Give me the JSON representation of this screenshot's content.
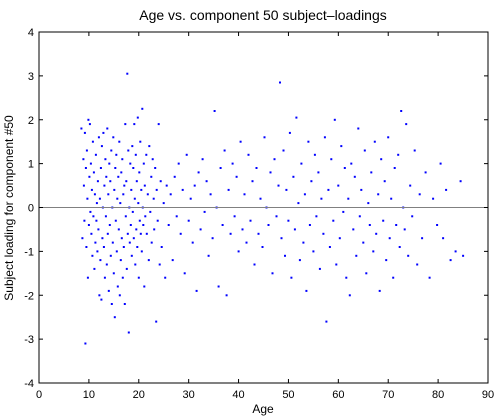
{
  "chart_data": {
    "type": "scatter",
    "title": "Age vs. component 50 subject–loadings",
    "xlabel": "Age",
    "ylabel": "Subject loading for component #50",
    "xlim": [
      0,
      90
    ],
    "ylim": [
      -4,
      4
    ],
    "xticks": [
      0,
      10,
      20,
      30,
      40,
      50,
      60,
      70,
      80,
      90
    ],
    "yticks": [
      -4,
      -3,
      -2,
      -1,
      0,
      1,
      2,
      3,
      4
    ],
    "grid": false,
    "legend": "none",
    "reference_line": 0,
    "marker_color": "#0000ff",
    "reference_line_color": "#808080",
    "points": [
      [
        8.5,
        1.8
      ],
      [
        8.7,
        -0.7
      ],
      [
        8.9,
        1.1
      ],
      [
        9.0,
        0.5
      ],
      [
        9.1,
        -0.3
      ],
      [
        9.2,
        1.7
      ],
      [
        9.3,
        -3.1
      ],
      [
        9.4,
        0.9
      ],
      [
        9.5,
        -0.9
      ],
      [
        9.6,
        1.3
      ],
      [
        9.7,
        0.2
      ],
      [
        9.8,
        -1.6
      ],
      [
        9.9,
        2.0
      ],
      [
        10.0,
        -0.4
      ],
      [
        10.1,
        0.7
      ],
      [
        10.2,
        1.9
      ],
      [
        10.3,
        -0.1
      ],
      [
        10.4,
        1.0
      ],
      [
        10.5,
        -0.6
      ],
      [
        10.6,
        0.4
      ],
      [
        10.7,
        -1.1
      ],
      [
        10.8,
        1.5
      ],
      [
        10.9,
        -0.2
      ],
      [
        11.0,
        0.8
      ],
      [
        11.1,
        -1.4
      ],
      [
        11.2,
        0.3
      ],
      [
        11.3,
        -0.8
      ],
      [
        11.4,
        1.2
      ],
      [
        11.5,
        -0.3
      ],
      [
        11.6,
        0.1
      ],
      [
        11.7,
        -1.0
      ],
      [
        11.8,
        0.6
      ],
      [
        11.9,
        -0.5
      ],
      [
        12.0,
        1.6
      ],
      [
        12.1,
        -2.0
      ],
      [
        12.2,
        0.2
      ],
      [
        12.3,
        -1.2
      ],
      [
        12.4,
        0.9
      ],
      [
        12.5,
        -2.1
      ],
      [
        12.6,
        1.4
      ],
      [
        12.7,
        -0.7
      ],
      [
        12.8,
        0.0
      ],
      [
        12.9,
        1.7
      ],
      [
        13.0,
        -0.9
      ],
      [
        13.1,
        0.5
      ],
      [
        13.2,
        -1.6
      ],
      [
        13.3,
        1.1
      ],
      [
        13.4,
        -0.2
      ],
      [
        13.5,
        0.7
      ],
      [
        13.6,
        -1.3
      ],
      [
        13.7,
        1.8
      ],
      [
        13.8,
        -0.6
      ],
      [
        13.9,
        0.3
      ],
      [
        14.0,
        -1.9
      ],
      [
        14.1,
        1.0
      ],
      [
        14.2,
        -0.4
      ],
      [
        14.3,
        0.6
      ],
      [
        14.4,
        -1.1
      ],
      [
        14.5,
        1.3
      ],
      [
        14.6,
        -2.2
      ],
      [
        14.7,
        0.0
      ],
      [
        14.8,
        -0.8
      ],
      [
        14.9,
        1.6
      ],
      [
        15.0,
        -1.5
      ],
      [
        15.1,
        0.4
      ],
      [
        15.2,
        -2.5
      ],
      [
        15.3,
        0.9
      ],
      [
        15.4,
        -0.3
      ],
      [
        15.5,
        1.2
      ],
      [
        15.6,
        -1.0
      ],
      [
        15.7,
        0.2
      ],
      [
        15.8,
        -1.8
      ],
      [
        15.9,
        0.7
      ],
      [
        16.0,
        -0.5
      ],
      [
        16.1,
        1.5
      ],
      [
        16.2,
        -2.0
      ],
      [
        16.3,
        0.1
      ],
      [
        16.4,
        -1.2
      ],
      [
        16.5,
        0.8
      ],
      [
        16.6,
        -0.7
      ],
      [
        16.7,
        1.1
      ],
      [
        16.8,
        -1.6
      ],
      [
        16.9,
        0.3
      ],
      [
        17.0,
        -0.9
      ],
      [
        17.1,
        0.5
      ],
      [
        17.2,
        -2.2
      ],
      [
        17.3,
        1.9
      ],
      [
        17.4,
        -0.2
      ],
      [
        17.5,
        0.6
      ],
      [
        17.6,
        -1.4
      ],
      [
        17.7,
        3.05
      ],
      [
        17.8,
        -0.6
      ],
      [
        17.9,
        1.3
      ],
      [
        18.0,
        -2.85
      ],
      [
        18.1,
        0.0
      ],
      [
        18.2,
        -0.8
      ],
      [
        18.3,
        1.0
      ],
      [
        18.4,
        -0.4
      ],
      [
        18.5,
        0.4
      ],
      [
        18.6,
        -1.1
      ],
      [
        18.7,
        1.4
      ],
      [
        18.8,
        -0.1
      ],
      [
        18.9,
        0.9
      ],
      [
        19.0,
        -0.7
      ],
      [
        19.1,
        1.9
      ],
      [
        19.2,
        0.2
      ],
      [
        19.3,
        -1.3
      ],
      [
        19.4,
        1.2
      ],
      [
        19.5,
        -0.5
      ],
      [
        19.6,
        0.6
      ],
      [
        19.7,
        -0.9
      ],
      [
        19.8,
        2.05
      ],
      [
        19.9,
        0.1
      ],
      [
        20.0,
        -1.6
      ],
      [
        20.1,
        0.8
      ],
      [
        20.2,
        -0.3
      ],
      [
        20.3,
        1.5
      ],
      [
        20.4,
        -0.6
      ],
      [
        20.5,
        0.4
      ],
      [
        20.6,
        -1.0
      ],
      [
        20.7,
        2.25
      ],
      [
        20.8,
        0.0
      ],
      [
        20.9,
        -0.4
      ],
      [
        21.0,
        1.0
      ],
      [
        21.1,
        -1.8
      ],
      [
        21.2,
        0.5
      ],
      [
        21.3,
        -0.2
      ],
      [
        21.5,
        1.2
      ],
      [
        21.6,
        -0.6
      ],
      [
        21.8,
        0.3
      ],
      [
        22.0,
        -1.2
      ],
      [
        22.1,
        1.4
      ],
      [
        22.3,
        -0.1
      ],
      [
        22.5,
        0.7
      ],
      [
        22.6,
        -0.8
      ],
      [
        22.8,
        1.1
      ],
      [
        23.0,
        0.2
      ],
      [
        23.1,
        -0.5
      ],
      [
        23.3,
        0.9
      ],
      [
        23.5,
        -2.6
      ],
      [
        23.6,
        0.4
      ],
      [
        23.8,
        -0.3
      ],
      [
        24.0,
        1.9
      ],
      [
        24.2,
        -1.3
      ],
      [
        24.4,
        0.6
      ],
      [
        24.6,
        -0.9
      ],
      [
        25.0,
        0.1
      ],
      [
        25.3,
        -1.6
      ],
      [
        25.6,
        0.5
      ],
      [
        26.0,
        -0.4
      ],
      [
        26.4,
        0.3
      ],
      [
        26.8,
        -1.2
      ],
      [
        27.2,
        0.7
      ],
      [
        27.6,
        -0.2
      ],
      [
        28.0,
        1.0
      ],
      [
        28.4,
        -0.6
      ],
      [
        28.8,
        0.4
      ],
      [
        29.2,
        -1.5
      ],
      [
        29.6,
        1.2
      ],
      [
        30.0,
        -0.3
      ],
      [
        30.4,
        0.2
      ],
      [
        30.8,
        -0.8
      ],
      [
        31.2,
        0.5
      ],
      [
        31.6,
        -1.9
      ],
      [
        32.0,
        0.8
      ],
      [
        32.4,
        -0.5
      ],
      [
        32.8,
        1.1
      ],
      [
        33.2,
        -0.1
      ],
      [
        33.6,
        0.6
      ],
      [
        34.0,
        -1.1
      ],
      [
        34.4,
        0.3
      ],
      [
        34.8,
        -0.7
      ],
      [
        35.2,
        2.2
      ],
      [
        35.6,
        0.0
      ],
      [
        36.0,
        -1.8
      ],
      [
        36.4,
        0.9
      ],
      [
        36.8,
        -0.4
      ],
      [
        37.2,
        1.3
      ],
      [
        37.6,
        -2.0
      ],
      [
        38.0,
        0.4
      ],
      [
        38.4,
        -0.6
      ],
      [
        38.8,
        1.0
      ],
      [
        39.2,
        -0.2
      ],
      [
        39.6,
        0.7
      ],
      [
        40.0,
        -1.0
      ],
      [
        40.4,
        1.5
      ],
      [
        40.8,
        -0.5
      ],
      [
        41.2,
        0.3
      ],
      [
        41.6,
        -0.8
      ],
      [
        42.0,
        1.2
      ],
      [
        42.4,
        -0.3
      ],
      [
        42.8,
        0.6
      ],
      [
        43.2,
        -1.3
      ],
      [
        43.6,
        0.9
      ],
      [
        44.0,
        -0.6
      ],
      [
        44.4,
        0.2
      ],
      [
        44.8,
        -0.9
      ],
      [
        45.2,
        1.6
      ],
      [
        45.6,
        0.0
      ],
      [
        46.0,
        -0.4
      ],
      [
        46.4,
        0.8
      ],
      [
        46.8,
        -1.5
      ],
      [
        47.2,
        1.1
      ],
      [
        47.6,
        -0.2
      ],
      [
        48.0,
        0.5
      ],
      [
        48.3,
        2.85
      ],
      [
        48.6,
        -0.7
      ],
      [
        49.0,
        1.3
      ],
      [
        49.3,
        -1.1
      ],
      [
        49.6,
        0.4
      ],
      [
        50.0,
        -0.3
      ],
      [
        50.3,
        1.7
      ],
      [
        50.6,
        -1.6
      ],
      [
        51.0,
        0.7
      ],
      [
        51.3,
        -0.5
      ],
      [
        51.6,
        2.05
      ],
      [
        52.0,
        0.1
      ],
      [
        52.3,
        -1.2
      ],
      [
        52.6,
        1.0
      ],
      [
        53.0,
        -0.8
      ],
      [
        53.3,
        0.3
      ],
      [
        53.6,
        -1.9
      ],
      [
        54.0,
        1.5
      ],
      [
        54.3,
        -0.4
      ],
      [
        54.6,
        0.6
      ],
      [
        55.0,
        -1.0
      ],
      [
        55.3,
        1.2
      ],
      [
        55.6,
        -0.2
      ],
      [
        56.0,
        0.8
      ],
      [
        56.3,
        -1.4
      ],
      [
        56.6,
        0.2
      ],
      [
        57.0,
        -0.6
      ],
      [
        57.3,
        1.6
      ],
      [
        57.6,
        -2.6
      ],
      [
        58.0,
        0.4
      ],
      [
        58.3,
        -0.9
      ],
      [
        58.6,
        1.1
      ],
      [
        59.0,
        -0.3
      ],
      [
        59.3,
        2.0
      ],
      [
        59.6,
        -1.3
      ],
      [
        60.0,
        0.5
      ],
      [
        60.3,
        -0.7
      ],
      [
        60.6,
        1.4
      ],
      [
        61.0,
        -0.1
      ],
      [
        61.3,
        0.9
      ],
      [
        61.6,
        -1.6
      ],
      [
        62.0,
        0.2
      ],
      [
        62.3,
        -2.0
      ],
      [
        62.6,
        1.0
      ],
      [
        63.0,
        -0.5
      ],
      [
        63.3,
        0.7
      ],
      [
        63.6,
        -1.1
      ],
      [
        64.0,
        1.8
      ],
      [
        64.3,
        -0.2
      ],
      [
        64.6,
        0.4
      ],
      [
        65.0,
        -0.8
      ],
      [
        65.3,
        1.3
      ],
      [
        65.6,
        -1.5
      ],
      [
        66.0,
        0.1
      ],
      [
        66.3,
        -0.4
      ],
      [
        66.6,
        0.8
      ],
      [
        67.0,
        -1.0
      ],
      [
        67.3,
        1.5
      ],
      [
        67.6,
        -0.6
      ],
      [
        68.0,
        0.3
      ],
      [
        68.3,
        -1.9
      ],
      [
        68.6,
        1.1
      ],
      [
        69.0,
        -0.3
      ],
      [
        69.3,
        0.6
      ],
      [
        69.6,
        -1.2
      ],
      [
        70.0,
        1.6
      ],
      [
        70.3,
        -0.7
      ],
      [
        70.6,
        0.2
      ],
      [
        71.0,
        -1.6
      ],
      [
        71.3,
        0.9
      ],
      [
        71.6,
        -0.4
      ],
      [
        72.0,
        1.2
      ],
      [
        72.3,
        -0.9
      ],
      [
        72.6,
        2.2
      ],
      [
        73.0,
        0.0
      ],
      [
        73.3,
        -0.5
      ],
      [
        73.6,
        1.9
      ],
      [
        74.0,
        -1.1
      ],
      [
        74.4,
        0.5
      ],
      [
        74.8,
        -0.2
      ],
      [
        75.3,
        1.3
      ],
      [
        75.8,
        -1.3
      ],
      [
        76.3,
        0.3
      ],
      [
        76.8,
        -0.7
      ],
      [
        77.5,
        0.8
      ],
      [
        78.3,
        -1.6
      ],
      [
        79.0,
        0.2
      ],
      [
        79.8,
        -0.4
      ],
      [
        80.5,
        1.0
      ],
      [
        81.0,
        -0.7
      ],
      [
        81.6,
        0.4
      ],
      [
        82.5,
        -1.2
      ],
      [
        83.5,
        -1.0
      ],
      [
        84.5,
        0.6
      ],
      [
        85.0,
        -1.1
      ]
    ]
  }
}
